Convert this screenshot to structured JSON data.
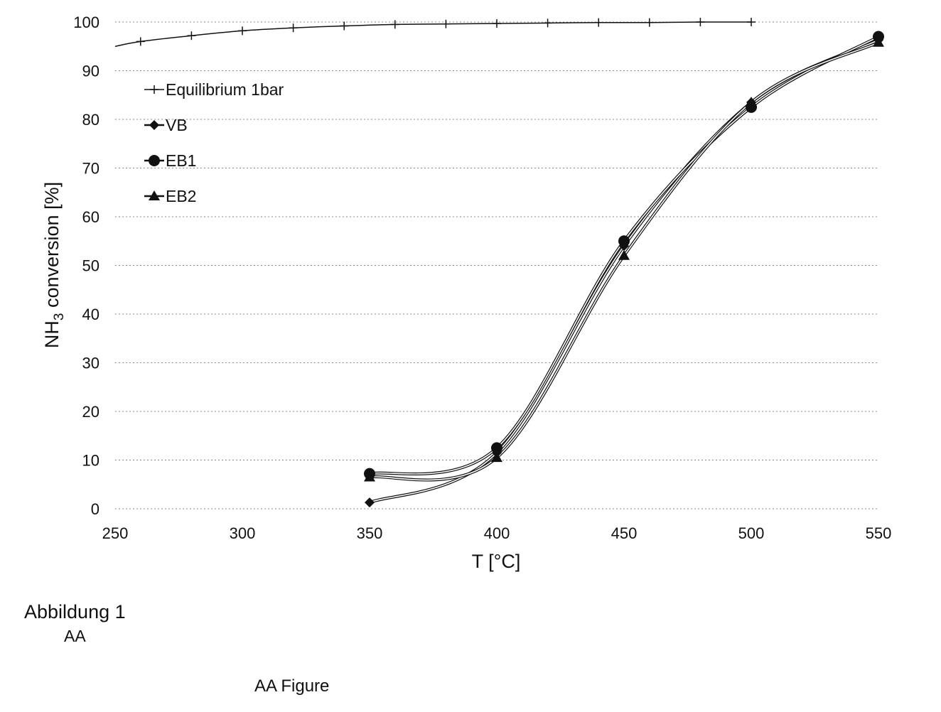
{
  "chart_data": {
    "type": "line",
    "title": "",
    "xlabel": "T [°C]",
    "ylabel_main": "NH",
    "ylabel_sub": "3",
    "ylabel_rest": " conversion [%]",
    "xlim": [
      250,
      550
    ],
    "ylim": [
      0,
      100
    ],
    "xticks": [
      250,
      300,
      350,
      400,
      450,
      500,
      550
    ],
    "yticks": [
      0,
      10,
      20,
      30,
      40,
      50,
      60,
      70,
      80,
      90,
      100
    ],
    "grid": "horizontal dotted",
    "legend_position": "top-left",
    "series": [
      {
        "name": "Equilibrium 1bar",
        "marker": "plus",
        "x": [
          250,
          260,
          280,
          300,
          320,
          340,
          360,
          380,
          400,
          420,
          440,
          460,
          480,
          500
        ],
        "y": [
          95.0,
          96.0,
          97.2,
          98.2,
          98.8,
          99.2,
          99.5,
          99.6,
          99.7,
          99.8,
          99.9,
          99.9,
          100.0,
          100.0
        ]
      },
      {
        "name": "VB",
        "marker": "diamond",
        "x": [
          350,
          400,
          450,
          500,
          550
        ],
        "y": [
          1.3,
          11.5,
          54.0,
          83.5,
          96.3
        ]
      },
      {
        "name": "EB1",
        "marker": "circle",
        "x": [
          350,
          400,
          450,
          500,
          550
        ],
        "y": [
          7.2,
          12.5,
          55.0,
          82.5,
          97.0
        ]
      },
      {
        "name": "EB2",
        "marker": "triangle",
        "x": [
          350,
          400,
          450,
          500,
          550
        ],
        "y": [
          6.5,
          10.5,
          52.0,
          83.5,
          95.8
        ]
      }
    ]
  },
  "captions": {
    "title": "Abbildung 1",
    "sub": "AA",
    "figure": "AA Figure"
  },
  "colors": {
    "ink": "#111111",
    "grid": "#8a8a8a"
  }
}
